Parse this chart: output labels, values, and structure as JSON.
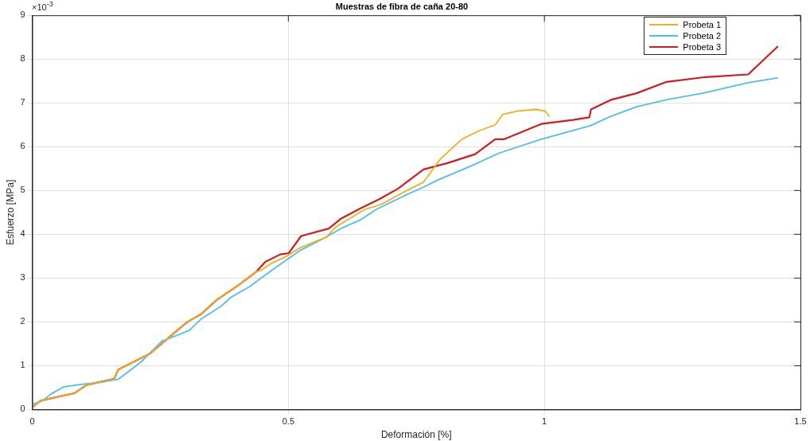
{
  "chart_data": {
    "type": "line",
    "title": "Muestras de fibra de caña 20-80",
    "xlabel": "Deformación [%]",
    "ylabel": "Esfuerzo [MPa]",
    "annotations": [
      "×10$^{-3}$"
    ],
    "xlim": [
      0,
      1.5
    ],
    "xticks": [
      0,
      0.5,
      1,
      1.5
    ],
    "ylim": [
      0,
      9
    ],
    "yticks": [
      0,
      1,
      2,
      3,
      4,
      5,
      6,
      7,
      8,
      9
    ],
    "grid": true,
    "legend": "top right",
    "marker": "none",
    "line_style": "solid",
    "series": [
      {
        "name": "Probeta 1",
        "color": "#edb120",
        "x": [
          0,
          0.016,
          0.082,
          0.106,
          0.16,
          0.168,
          0.228,
          0.303,
          0.329,
          0.36,
          0.404,
          0.438,
          0.446,
          0.466,
          0.497,
          0.523,
          0.575,
          0.593,
          0.648,
          0.683,
          0.725,
          0.764,
          0.797,
          0.839,
          0.87,
          0.904,
          0.919,
          0.947,
          0.983,
          1.002,
          1.009
        ],
        "values": [
          0.05,
          0.2,
          0.37,
          0.56,
          0.7,
          0.91,
          1.26,
          2,
          2.17,
          2.5,
          2.85,
          3.15,
          3.17,
          3.33,
          3.5,
          3.69,
          3.94,
          4.17,
          4.56,
          4.69,
          4.96,
          5.19,
          5.72,
          6.17,
          6.35,
          6.5,
          6.74,
          6.81,
          6.85,
          6.81,
          6.7
        ]
      },
      {
        "name": "Probeta 2",
        "color": "#4dbeee",
        "x": [
          0.003,
          0.02,
          0.036,
          0.062,
          0.093,
          0.14,
          0.168,
          0.213,
          0.253,
          0.28,
          0.307,
          0.329,
          0.368,
          0.388,
          0.424,
          0.455,
          0.497,
          0.523,
          0.57,
          0.606,
          0.641,
          0.672,
          0.725,
          0.761,
          0.792,
          0.859,
          0.911,
          0.994,
          1.056,
          1.09,
          1.129,
          1.18,
          1.238,
          1.309,
          1.398,
          1.455
        ],
        "values": [
          0.13,
          0.2,
          0.35,
          0.52,
          0.57,
          0.63,
          0.69,
          1.09,
          1.56,
          1.68,
          1.81,
          2.06,
          2.35,
          2.56,
          2.8,
          3.07,
          3.42,
          3.63,
          3.91,
          4.15,
          4.33,
          4.57,
          4.87,
          5.06,
          5.24,
          5.57,
          5.85,
          6.17,
          6.37,
          6.48,
          6.69,
          6.91,
          7.07,
          7.22,
          7.46,
          7.57
        ]
      },
      {
        "name": "Probeta 3",
        "color": "#d01c1f",
        "x": [
          0,
          0.016,
          0.082,
          0.106,
          0.16,
          0.168,
          0.228,
          0.303,
          0.329,
          0.36,
          0.404,
          0.438,
          0.455,
          0.484,
          0.501,
          0.525,
          0.579,
          0.602,
          0.641,
          0.679,
          0.714,
          0.764,
          0.812,
          0.865,
          0.904,
          0.921,
          0.994,
          1.056,
          1.088,
          1.091,
          1.13,
          1.18,
          1.239,
          1.315,
          1.398,
          1.455
        ],
        "values": [
          0.05,
          0.2,
          0.37,
          0.56,
          0.7,
          0.91,
          1.26,
          2,
          2.17,
          2.5,
          2.85,
          3.15,
          3.37,
          3.54,
          3.57,
          3.96,
          4.13,
          4.35,
          4.59,
          4.81,
          5.04,
          5.48,
          5.63,
          5.83,
          6.17,
          6.17,
          6.52,
          6.61,
          6.67,
          6.85,
          7.07,
          7.22,
          7.48,
          7.59,
          7.65,
          8.28
        ]
      }
    ]
  }
}
